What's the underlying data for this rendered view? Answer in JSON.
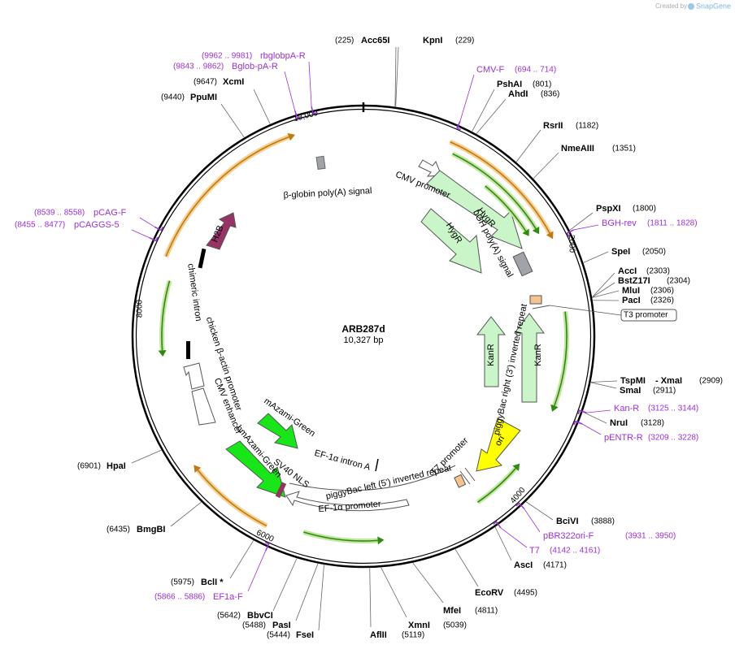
{
  "header": {
    "created_by": "Created by",
    "brand": "SnapGene"
  },
  "map": {
    "name": "ARB287d",
    "length": "10,327 bp",
    "ticks": [
      "10,000",
      "2000",
      "4000",
      "6000",
      "8000"
    ]
  },
  "sites": [
    {
      "name": "Acc65I",
      "position": "(225)"
    },
    {
      "name": "KpnI",
      "position": "(229)"
    },
    {
      "name": "XcmI",
      "position": "(9647)"
    },
    {
      "name": "PpuMI",
      "position": "(9440)"
    },
    {
      "name": "PshAI",
      "position": "(801)"
    },
    {
      "name": "AhdI",
      "position": "(836)"
    },
    {
      "name": "RsrII",
      "position": "(1182)"
    },
    {
      "name": "NmeAIII",
      "position": "(1351)"
    },
    {
      "name": "PspXI",
      "position": "(1800)"
    },
    {
      "name": "SpeI",
      "position": "(2050)"
    },
    {
      "name": "AccI",
      "position": "(2303)"
    },
    {
      "name": "BstZ17I",
      "position": "(2304)"
    },
    {
      "name": "MluI",
      "position": "(2306)"
    },
    {
      "name": "PacI",
      "position": "(2326)"
    },
    {
      "name": "TspMI",
      "extra": "- XmaI",
      "position": "(2909)"
    },
    {
      "name": "SmaI",
      "position": "(2911)"
    },
    {
      "name": "NruI",
      "position": "(3128)"
    },
    {
      "name": "BciVI",
      "position": "(3888)"
    },
    {
      "name": "AscI",
      "position": "(4171)"
    },
    {
      "name": "EcoRV",
      "position": "(4495)"
    },
    {
      "name": "MfeI",
      "position": "(4811)"
    },
    {
      "name": "XmnI",
      "position": "(5039)"
    },
    {
      "name": "AflII",
      "position": "(5119)"
    },
    {
      "name": "FseI",
      "position": "(5444)"
    },
    {
      "name": "PasI",
      "position": "(5488)"
    },
    {
      "name": "BbvCI",
      "position": "(5642)"
    },
    {
      "name": "BclI *",
      "position": "(5975)"
    },
    {
      "name": "BmgBI",
      "position": "(6435)"
    },
    {
      "name": "HpaI",
      "position": "(6901)"
    }
  ],
  "primers": [
    {
      "name": "rbglobpA-R",
      "range": "(9962 .. 9981)"
    },
    {
      "name": "Bglob-pA-R",
      "range": "(9843 .. 9862)"
    },
    {
      "name": "CMV-F",
      "range": "(694 .. 714)"
    },
    {
      "name": "BGH-rev",
      "range": "(1811 .. 1828)"
    },
    {
      "name": "Kan-R",
      "range": "(3125 .. 3144)"
    },
    {
      "name": "pENTR-R",
      "range": "(3209 .. 3228)"
    },
    {
      "name": "pBR322ori-F",
      "range": "(3931 .. 3950)"
    },
    {
      "name": "T7",
      "range": "(4142 .. 4161)"
    },
    {
      "name": "EF1a-F",
      "range": "(5866 .. 5886)"
    },
    {
      "name": "pCAG-F",
      "range": "(8539 .. 8558)"
    },
    {
      "name": "pCAGGS-5",
      "range": "(8455 .. 8477)"
    }
  ],
  "t3_promoter": "T3 promoter",
  "features": [
    "β-globin poly(A) signal",
    "CMV promoter",
    "HygR",
    "bGH poly(A) signal",
    "HygR",
    "KanR",
    "KanR",
    "piggyBac right (3') inverted repeat",
    "ori",
    "T7 promoter",
    "piggyBac left (5') inverted repeat",
    "EF-1α promoter",
    "SV40 NLS",
    "EF-1α intron A",
    "hmAzami-Green",
    "mAzami-Green",
    "CMV enhancer",
    "chicken β-actin promoter",
    "chimeric intron",
    "H2B"
  ]
}
